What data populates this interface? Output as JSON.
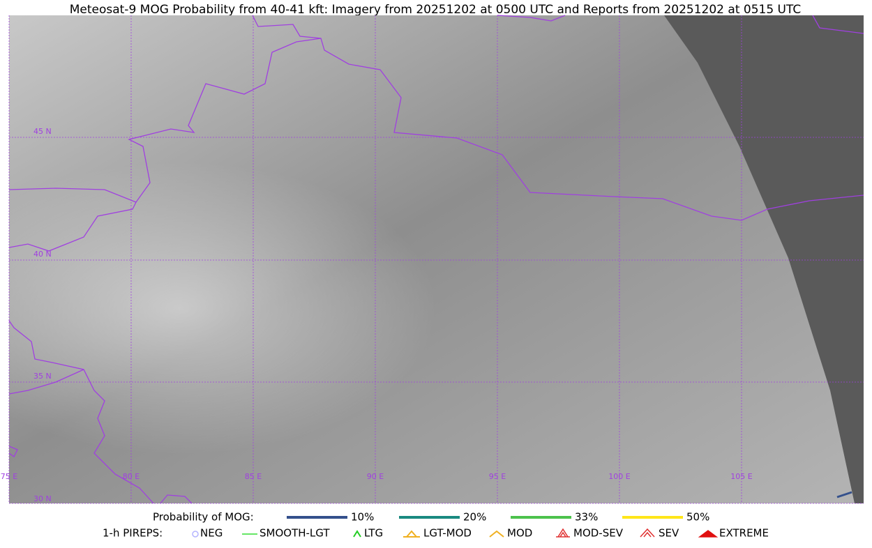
{
  "title": "Meteosat-9 MOG Probability from 40-41 kft: Imagery from 20251202 at 0500 UTC and Reports from 20251202 at 0515 UTC",
  "map": {
    "lat_labels": [
      "45 N",
      "40 N",
      "35 N",
      "30 N"
    ],
    "lon_labels": [
      "75 E",
      "80 E",
      "85 E",
      "90 E",
      "95 E",
      "100 E",
      "105 E"
    ]
  },
  "legend": {
    "probability": {
      "label": "Probability of MOG:",
      "items": [
        {
          "name": "10%",
          "color": "#34508c"
        },
        {
          "name": "20%",
          "color": "#1a8a80"
        },
        {
          "name": "33%",
          "color": "#4cc24c"
        },
        {
          "name": "50%",
          "color": "#ffe619"
        }
      ]
    },
    "pireps": {
      "label": "1-h PIREPS:",
      "items": [
        {
          "name": "NEG",
          "color": "#b4b4ff"
        },
        {
          "name": "SMOOTH-LGT",
          "color": "#33dd33"
        },
        {
          "name": "LTG",
          "color": "#22cc22"
        },
        {
          "name": "LGT-MOD",
          "color": "#f0b020"
        },
        {
          "name": "MOD",
          "color": "#f0b020"
        },
        {
          "name": "MOD-SEV",
          "color": "#e03030"
        },
        {
          "name": "SEV",
          "color": "#e03030"
        },
        {
          "name": "EXTREME",
          "color": "#e01010"
        }
      ]
    }
  }
}
